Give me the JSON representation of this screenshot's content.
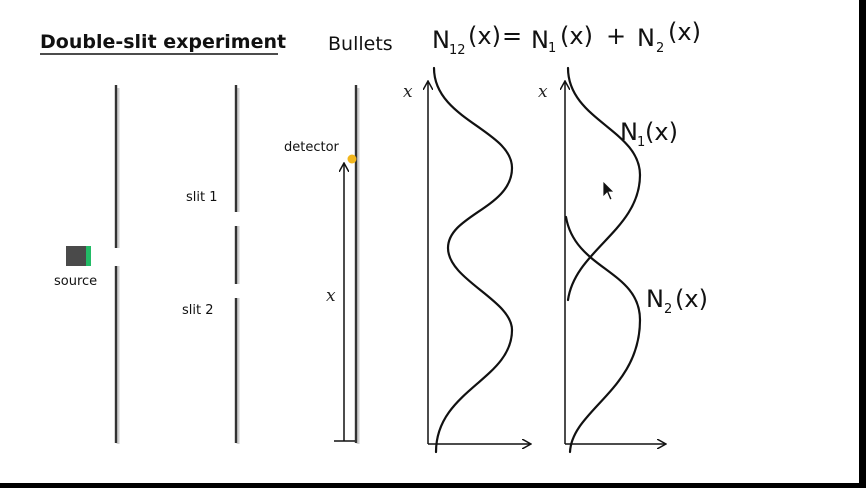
{
  "title": "Double-slit experiment",
  "labels": {
    "source": "source",
    "slit1": "slit 1",
    "slit2": "slit 2",
    "detector": "detector",
    "x_detector": "x",
    "x_axis_left": "x",
    "x_axis_right": "x",
    "bullets": "Bullets"
  },
  "equation": {
    "lhs": "N",
    "lhs_sub": "12",
    "lhs_arg": "(x)",
    "equals": "=",
    "t1": "N",
    "t1_sub": "1",
    "t1_arg": "(x)",
    "plus": "+",
    "t2": "N",
    "t2_sub": "2",
    "t2_arg": "(x)"
  },
  "curve_labels": {
    "n1": "N",
    "n1_sub": "1",
    "n1_arg": "(x)",
    "n2": "N",
    "n2_sub": "2",
    "n2_arg": "(x)"
  },
  "colors": {
    "background": "#ffffff",
    "outer": "#000000",
    "source_body": "#4a4a4a",
    "source_emitter": "#22bb66",
    "detector_dot": "#f2b61c",
    "ink": "#111111"
  }
}
